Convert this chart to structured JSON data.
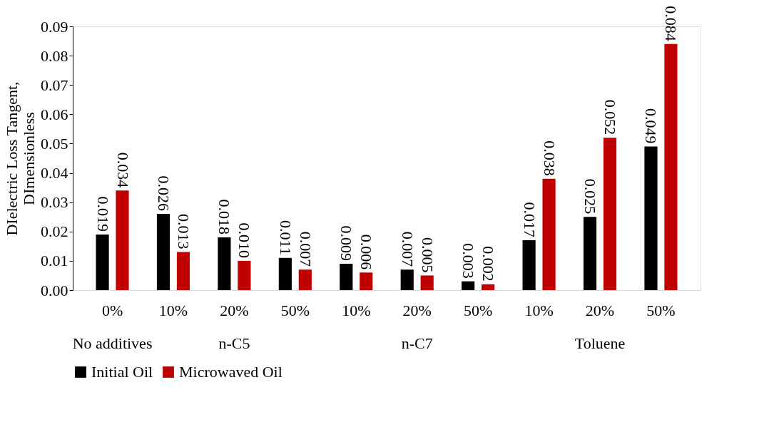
{
  "chart_data": {
    "type": "bar",
    "ylabel": "DIelectric Loss Tangent, DImensionless",
    "categories": [
      "0%",
      "10%",
      "20%",
      "50%",
      "10%",
      "20%",
      "50%",
      "10%",
      "20%",
      "50%"
    ],
    "series": [
      {
        "name": "Initial Oil",
        "color": "#000000",
        "values": [
          0.019,
          0.026,
          0.018,
          0.011,
          0.009,
          0.007,
          0.003,
          0.017,
          0.025,
          0.049
        ],
        "value_labels": [
          "0.019",
          "0.026",
          "0.018",
          "0.011",
          "0.009",
          "0.007",
          "0.003",
          "0.017",
          "0.025",
          "0.049"
        ]
      },
      {
        "name": "Microwaved Oil",
        "color": "#c00000",
        "values": [
          0.034,
          0.013,
          0.01,
          0.007,
          0.006,
          0.005,
          0.002,
          0.038,
          0.052,
          0.084
        ],
        "value_labels": [
          "0.034",
          "0.013",
          "0.010",
          "0.007",
          "0.006",
          "0.005",
          "0.002",
          "0.038",
          "0.052",
          "0.084"
        ]
      }
    ],
    "ylim": [
      0,
      0.09
    ],
    "yticks": [
      {
        "value": 0,
        "label": "0.00"
      },
      0.01,
      0.02,
      0.03,
      0.04,
      0.05,
      0.06,
      0.07,
      0.08,
      0.09
    ],
    "grid": false,
    "legend": "bottom",
    "annotations": [
      "No additives",
      "n-C5",
      "n-C7",
      "Toluene"
    ]
  }
}
